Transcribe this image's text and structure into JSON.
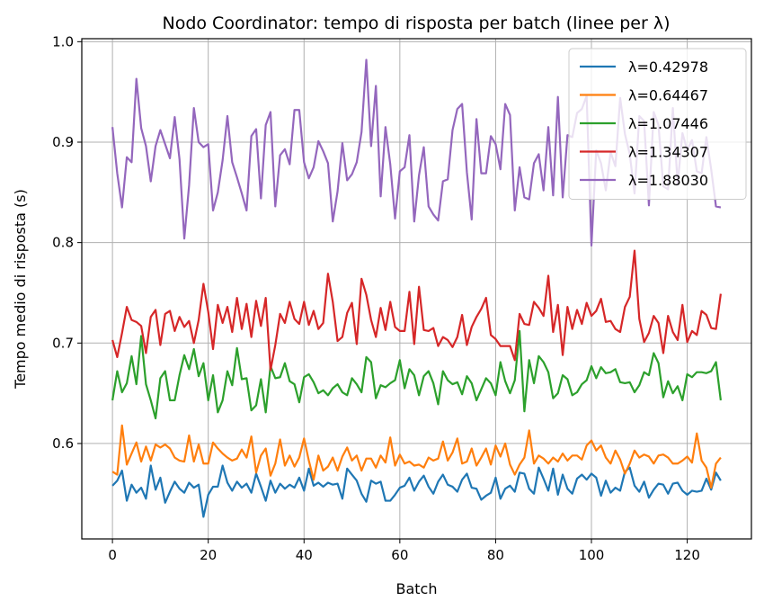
{
  "chart_data": {
    "type": "line",
    "title": "Nodo Coordinator: tempo di risposta per batch (linee per λ)",
    "xlabel": "Batch",
    "ylabel": "Tempo medio di risposta (s)",
    "xlim": [
      -6.4,
      133.4
    ],
    "ylim": [
      0.505,
      1.003
    ],
    "xticks": [
      0,
      20,
      40,
      60,
      80,
      100,
      120
    ],
    "yticks": [
      0.6,
      0.7,
      0.8,
      0.9,
      1.0
    ],
    "ytick_labels": [
      "0.6",
      "0.7",
      "0.8",
      "0.9",
      "1.0"
    ],
    "grid": true,
    "legend_position": "top-right",
    "series": [
      {
        "name": "λ=0.42978",
        "color": "#1f77b4",
        "values": [
          0.558,
          0.563,
          0.573,
          0.543,
          0.559,
          0.551,
          0.556,
          0.545,
          0.578,
          0.554,
          0.566,
          0.541,
          0.552,
          0.562,
          0.555,
          0.551,
          0.561,
          0.556,
          0.559,
          0.527,
          0.549,
          0.557,
          0.557,
          0.578,
          0.561,
          0.553,
          0.562,
          0.556,
          0.56,
          0.551,
          0.57,
          0.557,
          0.543,
          0.563,
          0.551,
          0.56,
          0.555,
          0.559,
          0.556,
          0.566,
          0.553,
          0.575,
          0.558,
          0.561,
          0.557,
          0.561,
          0.559,
          0.56,
          0.545,
          0.575,
          0.569,
          0.563,
          0.55,
          0.542,
          0.563,
          0.56,
          0.562,
          0.543,
          0.543,
          0.549,
          0.556,
          0.558,
          0.566,
          0.553,
          0.562,
          0.568,
          0.557,
          0.55,
          0.562,
          0.569,
          0.559,
          0.557,
          0.552,
          0.564,
          0.57,
          0.556,
          0.555,
          0.544,
          0.548,
          0.551,
          0.566,
          0.545,
          0.555,
          0.558,
          0.552,
          0.571,
          0.57,
          0.555,
          0.55,
          0.576,
          0.565,
          0.553,
          0.575,
          0.549,
          0.569,
          0.555,
          0.55,
          0.565,
          0.569,
          0.564,
          0.57,
          0.566,
          0.548,
          0.563,
          0.551,
          0.556,
          0.553,
          0.572,
          0.576,
          0.558,
          0.552,
          0.562,
          0.546,
          0.554,
          0.56,
          0.559,
          0.55,
          0.56,
          0.561,
          0.553,
          0.549,
          0.553,
          0.552,
          0.553,
          0.565,
          0.554,
          0.571,
          0.563
        ]
      },
      {
        "name": "λ=0.64467",
        "color": "#ff7f0e",
        "values": [
          0.572,
          0.569,
          0.618,
          0.579,
          0.59,
          0.601,
          0.582,
          0.597,
          0.583,
          0.599,
          0.596,
          0.599,
          0.595,
          0.586,
          0.583,
          0.582,
          0.608,
          0.582,
          0.599,
          0.58,
          0.58,
          0.601,
          0.595,
          0.59,
          0.586,
          0.583,
          0.585,
          0.594,
          0.586,
          0.607,
          0.571,
          0.588,
          0.595,
          0.568,
          0.58,
          0.604,
          0.578,
          0.588,
          0.577,
          0.586,
          0.605,
          0.583,
          0.564,
          0.588,
          0.573,
          0.577,
          0.586,
          0.573,
          0.587,
          0.596,
          0.583,
          0.588,
          0.573,
          0.585,
          0.585,
          0.576,
          0.588,
          0.581,
          0.606,
          0.578,
          0.589,
          0.58,
          0.582,
          0.578,
          0.579,
          0.576,
          0.586,
          0.583,
          0.585,
          0.602,
          0.583,
          0.591,
          0.605,
          0.58,
          0.582,
          0.595,
          0.578,
          0.586,
          0.595,
          0.579,
          0.598,
          0.587,
          0.6,
          0.579,
          0.569,
          0.579,
          0.586,
          0.613,
          0.58,
          0.588,
          0.585,
          0.58,
          0.586,
          0.582,
          0.59,
          0.583,
          0.588,
          0.588,
          0.584,
          0.598,
          0.603,
          0.593,
          0.598,
          0.586,
          0.58,
          0.593,
          0.584,
          0.57,
          0.58,
          0.593,
          0.586,
          0.589,
          0.587,
          0.58,
          0.588,
          0.589,
          0.586,
          0.58,
          0.58,
          0.583,
          0.587,
          0.581,
          0.61,
          0.583,
          0.576,
          0.556,
          0.58,
          0.586
        ]
      },
      {
        "name": "λ=1.07446",
        "color": "#2ca02c",
        "values": [
          0.643,
          0.672,
          0.651,
          0.66,
          0.687,
          0.659,
          0.707,
          0.659,
          0.643,
          0.625,
          0.665,
          0.672,
          0.643,
          0.643,
          0.668,
          0.688,
          0.674,
          0.694,
          0.667,
          0.68,
          0.643,
          0.668,
          0.631,
          0.643,
          0.672,
          0.658,
          0.695,
          0.664,
          0.665,
          0.633,
          0.638,
          0.664,
          0.631,
          0.677,
          0.665,
          0.666,
          0.68,
          0.662,
          0.659,
          0.641,
          0.666,
          0.669,
          0.661,
          0.65,
          0.653,
          0.648,
          0.655,
          0.659,
          0.651,
          0.648,
          0.665,
          0.659,
          0.651,
          0.686,
          0.681,
          0.645,
          0.658,
          0.656,
          0.66,
          0.663,
          0.683,
          0.655,
          0.674,
          0.668,
          0.648,
          0.667,
          0.672,
          0.66,
          0.639,
          0.672,
          0.663,
          0.659,
          0.661,
          0.649,
          0.667,
          0.66,
          0.643,
          0.654,
          0.665,
          0.66,
          0.648,
          0.681,
          0.662,
          0.65,
          0.663,
          0.712,
          0.632,
          0.683,
          0.66,
          0.687,
          0.681,
          0.671,
          0.645,
          0.65,
          0.668,
          0.664,
          0.648,
          0.651,
          0.659,
          0.663,
          0.677,
          0.665,
          0.676,
          0.67,
          0.671,
          0.674,
          0.661,
          0.66,
          0.661,
          0.651,
          0.658,
          0.671,
          0.668,
          0.69,
          0.68,
          0.646,
          0.662,
          0.65,
          0.657,
          0.643,
          0.669,
          0.666,
          0.671,
          0.671,
          0.67,
          0.672,
          0.681,
          0.643
        ]
      },
      {
        "name": "λ=1.34307",
        "color": "#d62728",
        "values": [
          0.703,
          0.686,
          0.71,
          0.736,
          0.723,
          0.721,
          0.717,
          0.69,
          0.726,
          0.733,
          0.698,
          0.729,
          0.732,
          0.712,
          0.726,
          0.716,
          0.722,
          0.7,
          0.723,
          0.759,
          0.731,
          0.694,
          0.738,
          0.72,
          0.736,
          0.711,
          0.745,
          0.714,
          0.739,
          0.706,
          0.742,
          0.717,
          0.745,
          0.673,
          0.698,
          0.729,
          0.72,
          0.741,
          0.724,
          0.719,
          0.741,
          0.718,
          0.732,
          0.714,
          0.72,
          0.769,
          0.741,
          0.702,
          0.706,
          0.73,
          0.74,
          0.699,
          0.764,
          0.748,
          0.723,
          0.706,
          0.735,
          0.713,
          0.741,
          0.716,
          0.712,
          0.712,
          0.751,
          0.699,
          0.756,
          0.713,
          0.712,
          0.715,
          0.697,
          0.706,
          0.703,
          0.696,
          0.706,
          0.728,
          0.698,
          0.716,
          0.726,
          0.734,
          0.745,
          0.708,
          0.704,
          0.697,
          0.697,
          0.697,
          0.683,
          0.729,
          0.719,
          0.718,
          0.741,
          0.735,
          0.727,
          0.767,
          0.711,
          0.738,
          0.688,
          0.736,
          0.714,
          0.733,
          0.719,
          0.74,
          0.727,
          0.732,
          0.744,
          0.721,
          0.722,
          0.714,
          0.711,
          0.736,
          0.746,
          0.792,
          0.724,
          0.701,
          0.71,
          0.727,
          0.72,
          0.69,
          0.727,
          0.711,
          0.703,
          0.738,
          0.701,
          0.712,
          0.708,
          0.732,
          0.728,
          0.715,
          0.714,
          0.749
        ]
      },
      {
        "name": "λ=1.88030",
        "color": "#9467bd",
        "values": [
          0.915,
          0.869,
          0.835,
          0.885,
          0.88,
          0.963,
          0.914,
          0.896,
          0.861,
          0.896,
          0.912,
          0.898,
          0.884,
          0.925,
          0.883,
          0.804,
          0.857,
          0.934,
          0.9,
          0.895,
          0.898,
          0.832,
          0.85,
          0.882,
          0.926,
          0.88,
          0.865,
          0.849,
          0.832,
          0.906,
          0.913,
          0.844,
          0.917,
          0.93,
          0.836,
          0.887,
          0.893,
          0.878,
          0.932,
          0.932,
          0.88,
          0.864,
          0.875,
          0.901,
          0.891,
          0.879,
          0.821,
          0.851,
          0.899,
          0.862,
          0.868,
          0.88,
          0.91,
          0.982,
          0.896,
          0.956,
          0.846,
          0.915,
          0.878,
          0.824,
          0.871,
          0.875,
          0.907,
          0.821,
          0.867,
          0.895,
          0.836,
          0.828,
          0.822,
          0.861,
          0.863,
          0.912,
          0.933,
          0.938,
          0.87,
          0.823,
          0.923,
          0.869,
          0.869,
          0.906,
          0.898,
          0.873,
          0.938,
          0.927,
          0.832,
          0.875,
          0.845,
          0.843,
          0.879,
          0.888,
          0.852,
          0.915,
          0.847,
          0.945,
          0.845,
          0.907,
          0.905,
          0.929,
          0.933,
          0.946,
          0.797,
          0.892,
          0.879,
          0.852,
          0.89,
          0.876,
          0.944,
          0.908,
          0.888,
          0.849,
          0.926,
          0.921,
          0.837,
          0.93,
          0.917,
          0.856,
          0.853,
          0.934,
          0.858,
          0.909,
          0.892,
          0.902,
          0.871,
          0.869,
          0.905,
          0.873,
          0.836,
          0.835
        ]
      }
    ]
  }
}
